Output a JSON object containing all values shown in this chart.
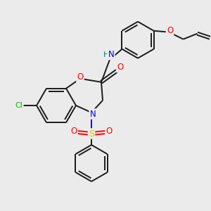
{
  "bg_color": "#ebebeb",
  "bond_color": "#1a1a1a",
  "atom_colors": {
    "O": "#ff0000",
    "N": "#0000ff",
    "S": "#cccc00",
    "Cl": "#00bb00",
    "H": "#008080",
    "C": "#1a1a1a"
  },
  "figsize": [
    3.0,
    3.0
  ],
  "dpi": 100
}
